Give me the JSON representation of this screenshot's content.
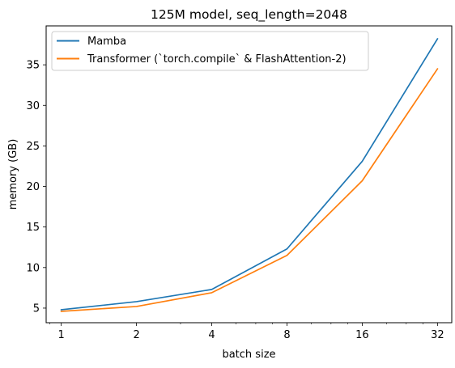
{
  "chart_data": {
    "type": "line",
    "title": "125M model, seq_length=2048",
    "xlabel": "batch size",
    "ylabel": "memory (GB)",
    "xscale": "log2",
    "x": [
      1,
      2,
      4,
      8,
      16,
      32
    ],
    "xticks": [
      "1",
      "2",
      "4",
      "8",
      "16",
      "32"
    ],
    "xlim": [
      0.87,
      36.5
    ],
    "ylim": [
      3.2,
      39.8
    ],
    "yticks": [
      5,
      10,
      15,
      20,
      25,
      30,
      35
    ],
    "grid": false,
    "legend_position": "top-left",
    "series": [
      {
        "name": "Mamba",
        "color": "#1f77b4",
        "values": [
          4.8,
          5.8,
          7.3,
          12.3,
          23.1,
          38.2
        ]
      },
      {
        "name": "Transformer (`torch.compile` & FlashAttention-2)",
        "color": "#ff7f0e",
        "values": [
          4.6,
          5.2,
          6.9,
          11.5,
          20.7,
          34.5
        ]
      }
    ]
  }
}
